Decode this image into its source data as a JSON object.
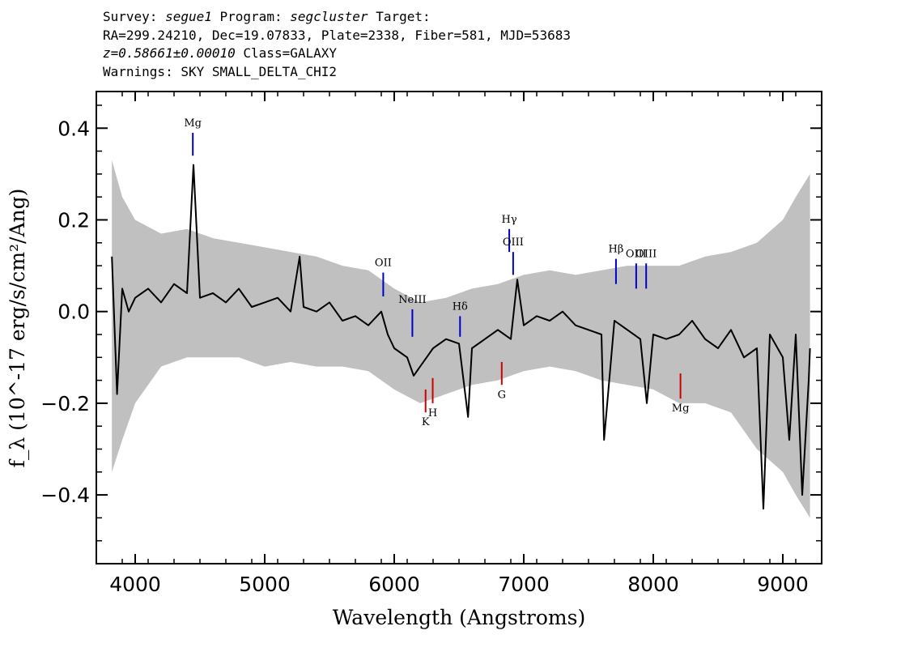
{
  "header": {
    "survey_label": "Survey:",
    "survey": "segue1",
    "program_label": "Program:",
    "program": "segcluster",
    "target_label": "Target:",
    "line2": "RA=299.24210, Dec=19.07833, Plate=2338, Fiber=581, MJD=53683",
    "redshift": "z=0.58661±0.00010",
    "class_text": "Class=GALAXY",
    "warnings": "Warnings: SKY SMALL_DELTA_CHI2"
  },
  "chart_data": {
    "type": "line",
    "xlabel": "Wavelength (Angstroms)",
    "ylabel": "f_λ (10^-17 erg/s/cm²/Ang)",
    "xlim": [
      3700,
      9300
    ],
    "ylim": [
      -0.55,
      0.48
    ],
    "x_ticks": [
      4000,
      5000,
      6000,
      7000,
      8000,
      9000
    ],
    "x_tick_labels": [
      "4000",
      "5000",
      "6000",
      "7000",
      "8000",
      "9000"
    ],
    "y_ticks": [
      0.4,
      0.2,
      0.0,
      -0.2,
      -0.4
    ],
    "y_tick_labels": [
      "0.4",
      "0.2",
      "0.0",
      "−0.2",
      "−0.4"
    ],
    "grid": false,
    "series": [
      {
        "role": "flux",
        "color": "#000000",
        "x": [
          3820,
          3860,
          3900,
          3950,
          4000,
          4100,
          4200,
          4300,
          4400,
          4450,
          4500,
          4600,
          4700,
          4800,
          4900,
          5000,
          5100,
          5200,
          5270,
          5300,
          5400,
          5500,
          5600,
          5700,
          5800,
          5900,
          5950,
          6000,
          6100,
          6150,
          6200,
          6250,
          6300,
          6400,
          6500,
          6570,
          6600,
          6700,
          6800,
          6900,
          6950,
          7000,
          7100,
          7200,
          7300,
          7400,
          7500,
          7600,
          7620,
          7700,
          7800,
          7900,
          7950,
          8000,
          8100,
          8200,
          8300,
          8400,
          8500,
          8600,
          8700,
          8800,
          8850,
          8900,
          9000,
          9050,
          9100,
          9150,
          9200,
          9210
        ],
        "y": [
          0.12,
          -0.18,
          0.05,
          0.0,
          0.03,
          0.05,
          0.02,
          0.06,
          0.04,
          0.32,
          0.03,
          0.04,
          0.02,
          0.05,
          0.01,
          0.02,
          0.03,
          0.0,
          0.12,
          0.01,
          0.0,
          0.02,
          -0.02,
          -0.01,
          -0.03,
          0.0,
          -0.05,
          -0.08,
          -0.1,
          -0.14,
          -0.12,
          -0.1,
          -0.08,
          -0.06,
          -0.07,
          -0.23,
          -0.08,
          -0.06,
          -0.04,
          -0.06,
          0.07,
          -0.03,
          -0.01,
          -0.02,
          0.0,
          -0.03,
          -0.04,
          -0.05,
          -0.28,
          -0.02,
          -0.04,
          -0.06,
          -0.2,
          -0.05,
          -0.06,
          -0.05,
          -0.02,
          -0.06,
          -0.08,
          -0.04,
          -0.1,
          -0.08,
          -0.43,
          -0.05,
          -0.1,
          -0.28,
          -0.05,
          -0.4,
          -0.15,
          -0.08
        ]
      },
      {
        "role": "error",
        "color": "#c0c0c0",
        "x": [
          3820,
          3900,
          4000,
          4200,
          4400,
          4600,
          4800,
          5000,
          5200,
          5400,
          5600,
          5800,
          6000,
          6200,
          6400,
          6600,
          6800,
          7000,
          7200,
          7400,
          7600,
          7800,
          8000,
          8200,
          8400,
          8600,
          8800,
          9000,
          9100,
          9210
        ],
        "upper": [
          0.33,
          0.25,
          0.2,
          0.17,
          0.18,
          0.16,
          0.15,
          0.14,
          0.13,
          0.12,
          0.1,
          0.09,
          0.05,
          0.02,
          0.03,
          0.05,
          0.06,
          0.08,
          0.09,
          0.08,
          0.09,
          0.1,
          0.1,
          0.1,
          0.12,
          0.13,
          0.15,
          0.2,
          0.25,
          0.3
        ],
        "lower": [
          -0.35,
          -0.28,
          -0.2,
          -0.12,
          -0.1,
          -0.1,
          -0.1,
          -0.12,
          -0.11,
          -0.12,
          -0.12,
          -0.13,
          -0.17,
          -0.2,
          -0.18,
          -0.16,
          -0.15,
          -0.13,
          -0.12,
          -0.13,
          -0.15,
          -0.16,
          -0.17,
          -0.2,
          -0.2,
          -0.22,
          -0.3,
          -0.35,
          -0.4,
          -0.45
        ]
      }
    ],
    "emission_lines": [
      {
        "name": "Mg",
        "x": 4445,
        "y_top": 0.39,
        "y_bottom": 0.34,
        "color": "#0000cc"
      },
      {
        "name": "OII",
        "x": 5915,
        "y_top": 0.085,
        "y_bottom": 0.033,
        "color": "#0000cc"
      },
      {
        "name": "NeIII",
        "x": 6140,
        "y_top": 0.005,
        "y_bottom": -0.055,
        "color": "#0000cc"
      },
      {
        "name": "Hδ",
        "x": 6508,
        "y_top": -0.01,
        "y_bottom": -0.055,
        "color": "#0000cc"
      },
      {
        "name": "Hγ",
        "x": 6888,
        "y_top": 0.18,
        "y_bottom": 0.13,
        "color": "#0000cc"
      },
      {
        "name": "OIII",
        "x": 6918,
        "y_top": 0.13,
        "y_bottom": 0.08,
        "color": "#0000cc"
      },
      {
        "name": "Hβ",
        "x": 7712,
        "y_top": 0.115,
        "y_bottom": 0.06,
        "color": "#0000cc"
      },
      {
        "name": "OIII",
        "x": 7868,
        "y_top": 0.105,
        "y_bottom": 0.05,
        "color": "#0000cc"
      },
      {
        "name": "OIII",
        "x": 7945,
        "y_top": 0.105,
        "y_bottom": 0.05,
        "color": "#0000cc"
      }
    ],
    "absorption_lines": [
      {
        "name": "K",
        "x": 6242,
        "y_top": -0.17,
        "y_bottom": -0.22,
        "color": "#cc0000"
      },
      {
        "name": "H",
        "x": 6297,
        "y_top": -0.145,
        "y_bottom": -0.2,
        "color": "#cc0000"
      },
      {
        "name": "G",
        "x": 6830,
        "y_top": -0.11,
        "y_bottom": -0.16,
        "color": "#cc0000"
      },
      {
        "name": "Mg",
        "x": 8210,
        "y_top": -0.135,
        "y_bottom": -0.19,
        "color": "#cc0000"
      }
    ]
  }
}
